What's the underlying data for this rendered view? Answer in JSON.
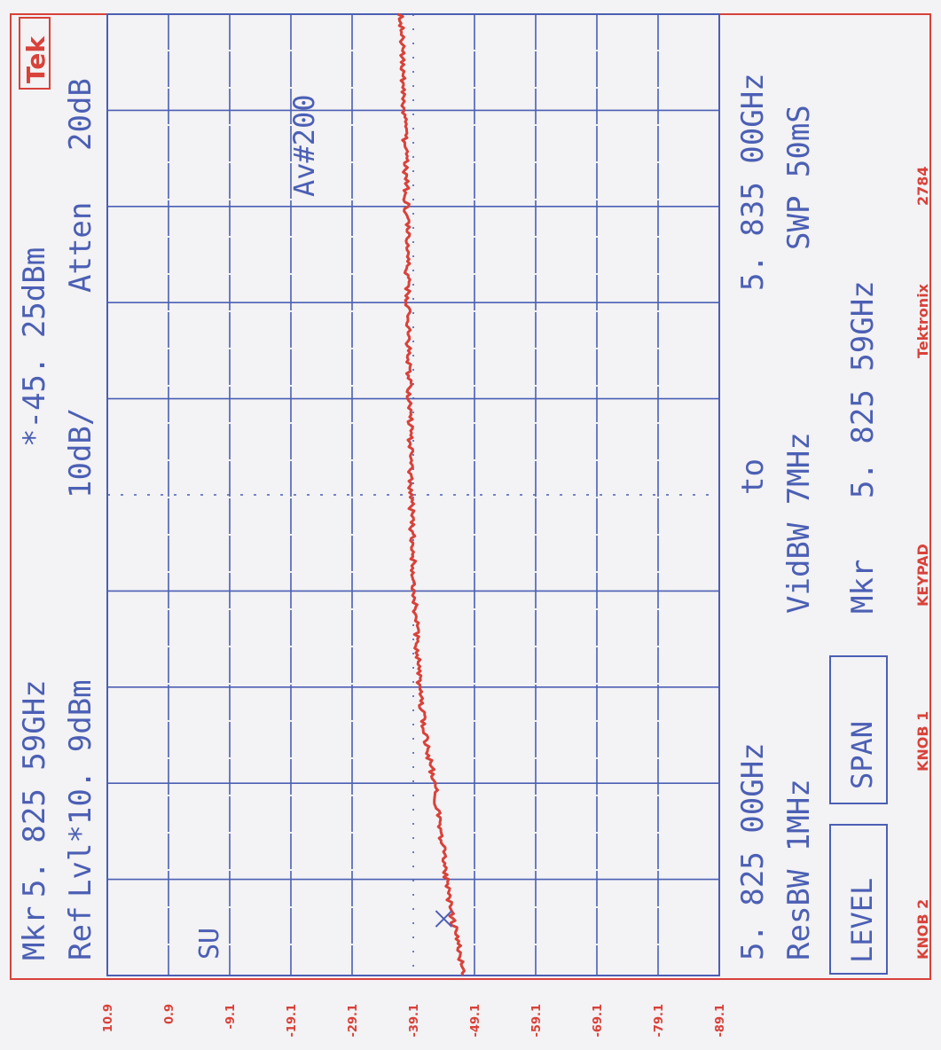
{
  "header": {
    "marker_label": "Mkr",
    "marker_freq": "5. 825 59GHz",
    "ref_label": "Ref",
    "ref_level": "Lvl*10. 9dBm",
    "scale": "10dB/",
    "marker_value": "*-45. 25dBm",
    "atten_label": "Atten",
    "atten_value": "20dB",
    "brand_logo": "Tek"
  },
  "annotations": {
    "averaging": "Av#200",
    "mode": "SU"
  },
  "footer": {
    "start_freq": "5. 825 00GHz",
    "to_label": "to",
    "stop_freq": "5. 835 00GHz",
    "resbw": "ResBW 1MHz",
    "vidbw": "VidBW 7MHz",
    "swp": "SWP 50mS",
    "mkr_label": "Mkr",
    "mkr_freq": "5. 825 59GHz"
  },
  "softkeys": {
    "level": "LEVEL",
    "span": "SPAN"
  },
  "bottom_labels": {
    "knob2": "KNOB 2",
    "knob1": "KNOB 1",
    "keypad": "KEYPAD",
    "brand": "Tektronix",
    "model": "2784"
  },
  "colors": {
    "paper": "#f3f2f4",
    "grid": "#4b5fb4",
    "trace": "#d8423a",
    "frame": "#d8423a"
  },
  "chart_data": {
    "type": "line",
    "title": "",
    "xlabel": "",
    "ylabel": "",
    "x_unit": "GHz",
    "xlim": [
      5.825,
      5.835
    ],
    "ylim": [
      -89.1,
      10.9
    ],
    "y_ticks": [
      "10.9",
      "0.9",
      "-9.1",
      "-19.1",
      "-29.1",
      "-39.1",
      "-49.1",
      "-59.1",
      "-69.1",
      "-79.1",
      "-89.1"
    ],
    "grid": true,
    "marker": {
      "x": 5.82559,
      "y": -45.25
    },
    "series": [
      {
        "x": [
          5.825,
          5.8253,
          5.8256,
          5.826,
          5.8265,
          5.827,
          5.8275,
          5.828,
          5.829,
          5.83,
          5.831,
          5.832,
          5.833,
          5.834,
          5.835
        ],
        "values": [
          -47.2,
          -46.5,
          -45.5,
          -44.5,
          -43.6,
          -42.5,
          -41.0,
          -40.0,
          -39.3,
          -38.7,
          -38.5,
          -38.2,
          -38.0,
          -37.6,
          -37.0
        ]
      }
    ]
  }
}
